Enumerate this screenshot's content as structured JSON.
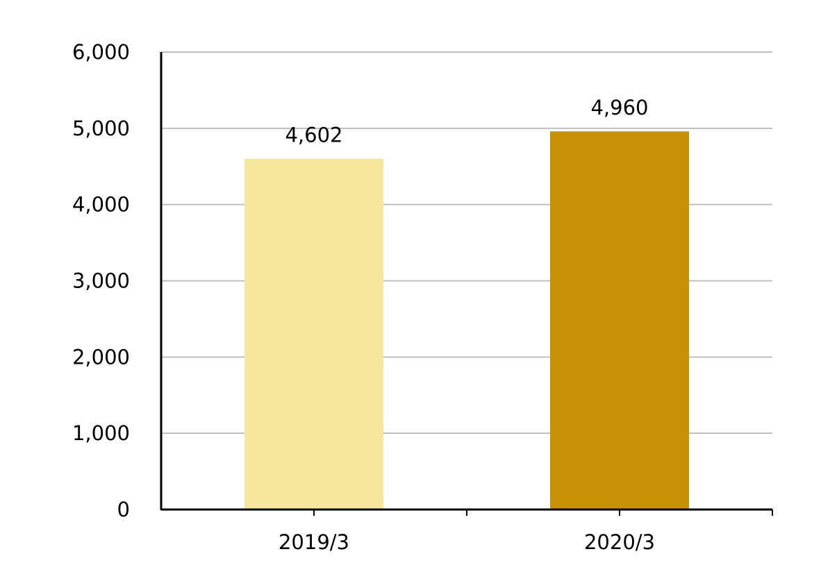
{
  "chart_data": {
    "type": "bar",
    "categories": [
      "2019/3",
      "2020/3"
    ],
    "series": [
      {
        "values": [
          4602,
          4960
        ],
        "data_labels": [
          "4,602",
          "4,960"
        ],
        "colors": [
          "#F7E79A",
          "#C89105"
        ]
      }
    ],
    "ylim": [
      0,
      6000
    ],
    "yticks": [
      0,
      1000,
      2000,
      3000,
      4000,
      5000,
      6000
    ],
    "ytick_labels": [
      "0",
      "1,000",
      "2,000",
      "3,000",
      "4,000",
      "5,000",
      "6,000"
    ],
    "grid": true,
    "grid_color": "#BFBFBF",
    "axis_color": "#000000",
    "title": "",
    "xlabel": "",
    "ylabel": ""
  }
}
